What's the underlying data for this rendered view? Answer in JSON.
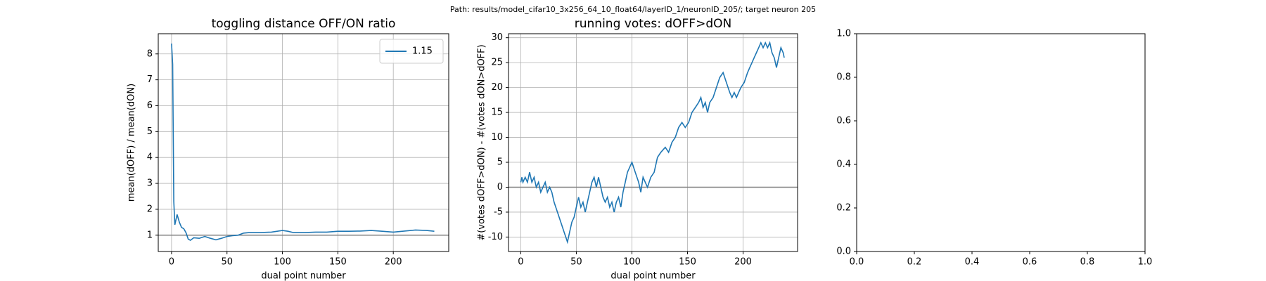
{
  "suptitle": "Path: results/model_cifar10_3x256_64_10_float64/layerID_1/neuronID_205/; target neuron 205",
  "chart_data": [
    {
      "type": "line",
      "title": "toggling distance OFF/ON ratio",
      "xlabel": "dual point number",
      "ylabel": "mean(dOFF) / mean(dON)",
      "xlim": [
        -12,
        250
      ],
      "ylim": [
        0.37,
        8.78
      ],
      "xticks": [
        0,
        50,
        100,
        150,
        200
      ],
      "yticks": [
        1,
        2,
        3,
        4,
        5,
        6,
        7,
        8
      ],
      "grid": true,
      "hline": 1,
      "legend": "upper right",
      "series": [
        {
          "name": "1.15",
          "color": "#1f77b4",
          "x": [
            0,
            1,
            2,
            3,
            5,
            7,
            9,
            11,
            13,
            15,
            17,
            20,
            25,
            30,
            35,
            40,
            45,
            50,
            55,
            60,
            65,
            70,
            80,
            90,
            100,
            105,
            110,
            120,
            130,
            140,
            150,
            160,
            170,
            180,
            190,
            200,
            210,
            220,
            230,
            237
          ],
          "values": [
            8.4,
            7.6,
            2.3,
            1.4,
            1.8,
            1.5,
            1.3,
            1.25,
            1.1,
            0.85,
            0.8,
            0.9,
            0.88,
            0.95,
            0.88,
            0.82,
            0.88,
            0.95,
            0.98,
            1.0,
            1.08,
            1.1,
            1.1,
            1.12,
            1.18,
            1.15,
            1.1,
            1.1,
            1.12,
            1.12,
            1.15,
            1.15,
            1.16,
            1.18,
            1.15,
            1.12,
            1.16,
            1.2,
            1.18,
            1.15
          ]
        }
      ]
    },
    {
      "type": "line",
      "title": "running votes: dOFF>dON",
      "xlabel": "dual point number",
      "ylabel": "#(votes dOFF>dON) - #(votes dON>dOFF)",
      "xlim": [
        -11,
        249
      ],
      "ylim": [
        -12.9,
        30.8
      ],
      "xticks": [
        0,
        50,
        100,
        150,
        200
      ],
      "yticks": [
        -10,
        -5,
        0,
        5,
        10,
        15,
        20,
        25,
        30
      ],
      "grid": true,
      "hline": 0,
      "series": [
        {
          "color": "#1f77b4",
          "x": [
            0,
            1,
            2,
            4,
            6,
            8,
            10,
            12,
            14,
            16,
            18,
            20,
            22,
            24,
            26,
            28,
            30,
            33,
            36,
            39,
            42,
            44,
            46,
            48,
            50,
            52,
            54,
            56,
            58,
            60,
            62,
            64,
            66,
            68,
            70,
            72,
            74,
            76,
            78,
            80,
            82,
            84,
            86,
            88,
            90,
            92,
            94,
            96,
            98,
            100,
            103,
            106,
            108,
            110,
            112,
            114,
            117,
            120,
            123,
            126,
            130,
            133,
            136,
            139,
            142,
            145,
            148,
            151,
            154,
            157,
            160,
            162,
            164,
            166,
            168,
            170,
            173,
            176,
            179,
            182,
            185,
            188,
            190,
            192,
            194,
            196,
            198,
            201,
            204,
            206,
            208,
            210,
            212,
            214,
            216,
            218,
            220,
            222,
            224,
            226,
            228,
            230,
            232,
            234,
            236,
            237
          ],
          "values": [
            1,
            2,
            1,
            2,
            1,
            3,
            1,
            2,
            0,
            1,
            -1,
            0,
            1,
            -1,
            0,
            -1,
            -3,
            -5,
            -7,
            -9,
            -11,
            -9,
            -7,
            -6,
            -4,
            -2,
            -4,
            -3,
            -5,
            -3,
            -1,
            1,
            2,
            0,
            2,
            0,
            -2,
            -3,
            -2,
            -4,
            -3,
            -5,
            -3,
            -2,
            -4,
            -1,
            1,
            3,
            4,
            5,
            3,
            1,
            -1,
            2,
            1,
            0,
            2,
            3,
            6,
            7,
            8,
            7,
            9,
            10,
            12,
            13,
            12,
            13,
            15,
            16,
            17,
            18,
            16,
            17,
            15,
            17,
            18,
            20,
            22,
            23,
            21,
            19,
            18,
            19,
            18,
            19,
            20,
            21,
            23,
            24,
            25,
            26,
            27,
            28,
            29,
            28,
            29,
            28,
            29,
            27,
            26,
            24,
            26,
            28,
            27,
            26
          ]
        }
      ]
    },
    {
      "type": "blank",
      "xlim": [
        0,
        1
      ],
      "ylim": [
        0,
        1
      ],
      "xticks": [
        {
          "value": 0,
          "label": "0.0"
        },
        {
          "value": 0.2,
          "label": "0.2"
        },
        {
          "value": 0.4,
          "label": "0.4"
        },
        {
          "value": 0.6,
          "label": "0.6"
        },
        {
          "value": 0.8,
          "label": "0.8"
        },
        {
          "value": 1,
          "label": "1.0"
        }
      ],
      "yticks": [
        {
          "value": 0,
          "label": "0.0"
        },
        {
          "value": 0.2,
          "label": "0.2"
        },
        {
          "value": 0.4,
          "label": "0.4"
        },
        {
          "value": 0.6,
          "label": "0.6"
        },
        {
          "value": 0.8,
          "label": "0.8"
        },
        {
          "value": 1,
          "label": "1.0"
        }
      ]
    }
  ]
}
